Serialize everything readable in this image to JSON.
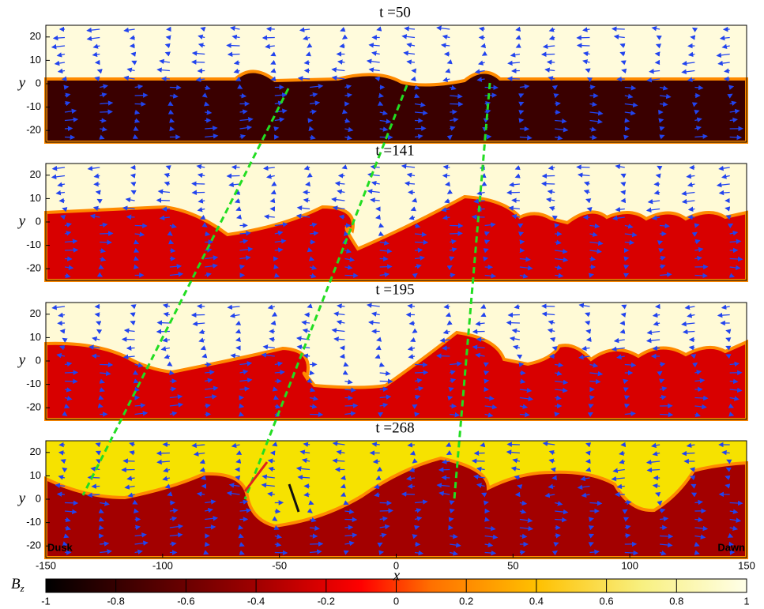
{
  "chart_data": [
    {
      "type": "heatmap",
      "title": "t =50",
      "ylabel": "y",
      "xlim": [
        -150,
        150
      ],
      "ylim": [
        -25,
        25
      ],
      "yticks": [
        20,
        10,
        0,
        -10,
        -20
      ]
    },
    {
      "type": "heatmap",
      "title": "t =141",
      "ylabel": "y",
      "xlim": [
        -150,
        150
      ],
      "ylim": [
        -25,
        25
      ],
      "yticks": [
        20,
        10,
        0,
        -10,
        -20
      ]
    },
    {
      "type": "heatmap",
      "title": "t =195",
      "ylabel": "y",
      "xlim": [
        -150,
        150
      ],
      "ylim": [
        -25,
        25
      ],
      "yticks": [
        20,
        10,
        0,
        -10,
        -20
      ]
    },
    {
      "type": "heatmap",
      "title": "t =268",
      "ylabel": "y",
      "xlabel": "x",
      "xlim": [
        -150,
        150
      ],
      "ylim": [
        -25,
        25
      ],
      "yticks": [
        20,
        10,
        0,
        -10,
        -20
      ],
      "xticks": [
        -150,
        -100,
        -50,
        0,
        50,
        100,
        150
      ],
      "annotations": [
        "Dusk",
        "Dawn"
      ]
    }
  ],
  "colorbar": {
    "label": "B",
    "subscript": "z",
    "lim": [
      -1,
      1
    ],
    "ticks": [
      -1,
      -0.8,
      -0.6,
      -0.4,
      -0.2,
      0,
      0.2,
      0.4,
      0.6,
      0.8,
      1
    ]
  }
}
